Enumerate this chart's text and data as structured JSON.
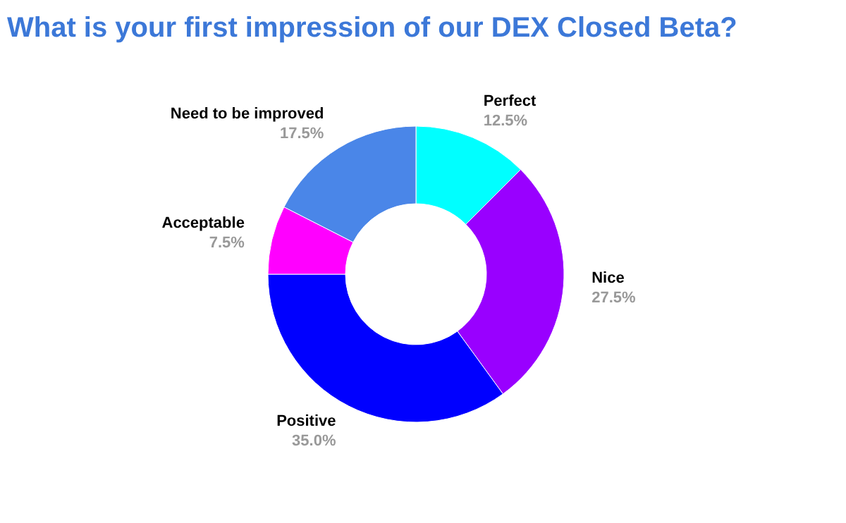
{
  "chart_data": {
    "type": "donut",
    "title": "What is your first impression of our DEX Closed Beta?",
    "categories": [
      "Perfect",
      "Nice",
      "Positive",
      "Acceptable",
      "Need to be improved"
    ],
    "values": [
      12.5,
      27.5,
      35.0,
      7.5,
      17.5
    ],
    "value_labels": [
      "12.5%",
      "27.5%",
      "35.0%",
      "7.5%",
      "17.5%"
    ],
    "colors": [
      "#00ffff",
      "#9900ff",
      "#0000ff",
      "#ff00ff",
      "#4a86e8"
    ],
    "legend": false
  }
}
